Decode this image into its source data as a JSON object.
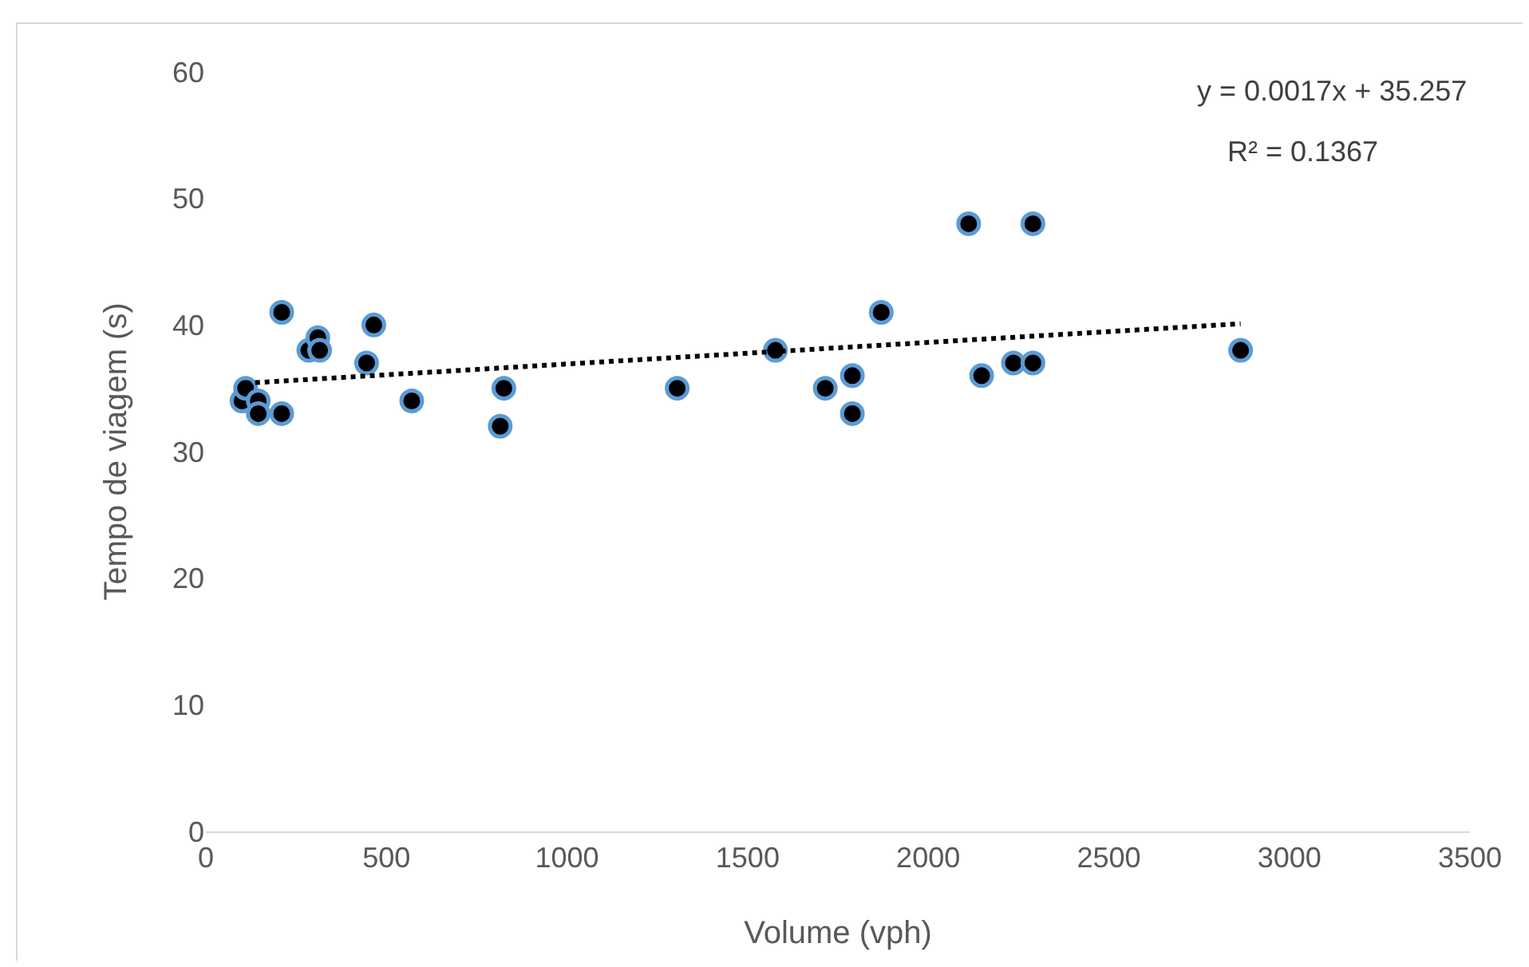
{
  "chart_data": {
    "type": "scatter",
    "xlabel": "Volume (vph)",
    "ylabel": "Tempo de viagem (s)",
    "xlim": [
      0,
      3500
    ],
    "xticks": [
      0,
      500,
      1000,
      1500,
      2000,
      2500,
      3000,
      3500
    ],
    "ylim": [
      0,
      60
    ],
    "yticks": [
      0,
      10,
      20,
      30,
      40,
      50,
      60
    ],
    "grid": false,
    "marker": "circle",
    "series": [
      {
        "color": "#000000",
        "x": [
          100,
          110,
          145,
          145,
          210,
          210,
          285,
          310,
          315,
          445,
          465,
          570,
          815,
          825,
          1305,
          1577,
          1715,
          1790,
          1790,
          1870,
          2112,
          2148,
          2236,
          2290,
          2290,
          2865
        ],
        "values": [
          34,
          35,
          34,
          33,
          33,
          41,
          38,
          39,
          38,
          37,
          40,
          34,
          32,
          35,
          35,
          38,
          35,
          36,
          33,
          41,
          48,
          36,
          37,
          37,
          48,
          38
        ]
      },
      {
        "type": "line",
        "marker": "none",
        "color": "#000000",
        "line_style": "dotted",
        "x": [
          110,
          2865
        ],
        "values": [
          35.4,
          40.1
        ]
      }
    ],
    "annotations": [
      "y = 0.0017x + 35.257",
      "R² = 0.1367"
    ]
  }
}
